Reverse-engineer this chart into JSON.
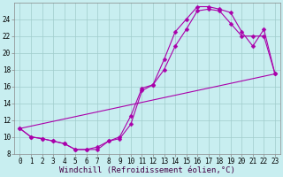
{
  "background_color": "#c8eef0",
  "line_color": "#aa00aa",
  "marker": "D",
  "markersize": 2.5,
  "linewidth": 0.8,
  "xlabel": "Windchill (Refroidissement éolien,°C)",
  "xlabel_fontsize": 6.5,
  "tick_fontsize": 5.5,
  "xlim": [
    -0.5,
    23.5
  ],
  "ylim": [
    8,
    26
  ],
  "yticks": [
    8,
    10,
    12,
    14,
    16,
    18,
    20,
    22,
    24
  ],
  "xticks": [
    0,
    1,
    2,
    3,
    4,
    5,
    6,
    7,
    8,
    9,
    10,
    11,
    12,
    13,
    14,
    15,
    16,
    17,
    18,
    19,
    20,
    21,
    22,
    23
  ],
  "grid_color": "#a0cccc",
  "curve1": {
    "x": [
      0,
      1,
      2,
      3,
      4,
      5,
      6,
      7,
      8,
      9,
      10,
      11,
      12,
      13,
      14,
      15,
      16,
      17,
      18,
      19,
      20,
      21,
      22,
      23
    ],
    "y": [
      11.0,
      10.0,
      9.8,
      9.5,
      9.2,
      8.5,
      8.5,
      8.5,
      9.5,
      9.8,
      11.5,
      15.5,
      16.2,
      19.2,
      22.5,
      24.0,
      25.5,
      25.5,
      25.2,
      24.8,
      22.5,
      20.8,
      22.8,
      17.5
    ]
  },
  "curve2": {
    "x": [
      0,
      1,
      2,
      3,
      4,
      5,
      6,
      7,
      8,
      9,
      10,
      11,
      12,
      13,
      14,
      15,
      16,
      17,
      18,
      19,
      20,
      21,
      22,
      23
    ],
    "y": [
      11.0,
      10.0,
      9.8,
      9.5,
      9.2,
      8.5,
      8.5,
      8.8,
      9.5,
      10.0,
      12.5,
      15.8,
      16.2,
      18.0,
      20.8,
      22.8,
      25.0,
      25.2,
      25.0,
      23.5,
      22.0,
      22.0,
      22.0,
      17.5
    ]
  },
  "curve3": {
    "x": [
      0,
      23
    ],
    "y": [
      11.0,
      17.5
    ]
  }
}
